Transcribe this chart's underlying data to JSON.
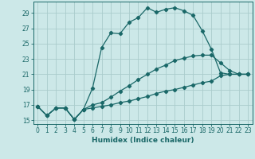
{
  "xlabel": "Humidex (Indice chaleur)",
  "bg_color": "#cce8e8",
  "grid_color": "#aacccc",
  "line_color": "#1a6868",
  "xlim": [
    -0.5,
    23.5
  ],
  "ylim": [
    14.5,
    30.5
  ],
  "xticks": [
    0,
    1,
    2,
    3,
    4,
    5,
    6,
    7,
    8,
    9,
    10,
    11,
    12,
    13,
    14,
    15,
    16,
    17,
    18,
    19,
    20,
    21,
    22,
    23
  ],
  "yticks": [
    15,
    17,
    19,
    21,
    23,
    25,
    27,
    29
  ],
  "line1_x": [
    0,
    1,
    2,
    3,
    4,
    5,
    6,
    7,
    8,
    9,
    10,
    11,
    12,
    13,
    14,
    15,
    16,
    17,
    18,
    19,
    20,
    21,
    22,
    23
  ],
  "line1_y": [
    16.8,
    15.6,
    16.6,
    16.6,
    15.1,
    16.4,
    19.2,
    24.5,
    26.4,
    26.3,
    27.8,
    28.4,
    29.7,
    29.1,
    29.5,
    29.7,
    29.3,
    28.7,
    26.7,
    24.3,
    21.2,
    21.0,
    21.0,
    21.0
  ],
  "line2_x": [
    0,
    1,
    2,
    3,
    4,
    5,
    6,
    7,
    8,
    9,
    10,
    11,
    12,
    13,
    14,
    15,
    16,
    17,
    18,
    19,
    20,
    21,
    22,
    23
  ],
  "line2_y": [
    16.8,
    15.6,
    16.6,
    16.6,
    15.1,
    16.4,
    17.0,
    17.3,
    18.0,
    18.8,
    19.5,
    20.3,
    21.0,
    21.7,
    22.2,
    22.8,
    23.1,
    23.4,
    23.5,
    23.5,
    22.5,
    21.5,
    21.0,
    21.0
  ],
  "line3_x": [
    0,
    1,
    2,
    3,
    4,
    5,
    6,
    7,
    8,
    9,
    10,
    11,
    12,
    13,
    14,
    15,
    16,
    17,
    18,
    19,
    20,
    21,
    22,
    23
  ],
  "line3_y": [
    16.8,
    15.6,
    16.6,
    16.6,
    15.1,
    16.4,
    16.6,
    16.8,
    17.0,
    17.3,
    17.5,
    17.8,
    18.1,
    18.5,
    18.8,
    19.0,
    19.3,
    19.6,
    19.9,
    20.1,
    20.8,
    21.0,
    21.0,
    21.0
  ],
  "marker": "D",
  "marker_size": 2.2,
  "line_width": 0.9,
  "tick_fontsize": 5.5,
  "xlabel_fontsize": 6.5
}
